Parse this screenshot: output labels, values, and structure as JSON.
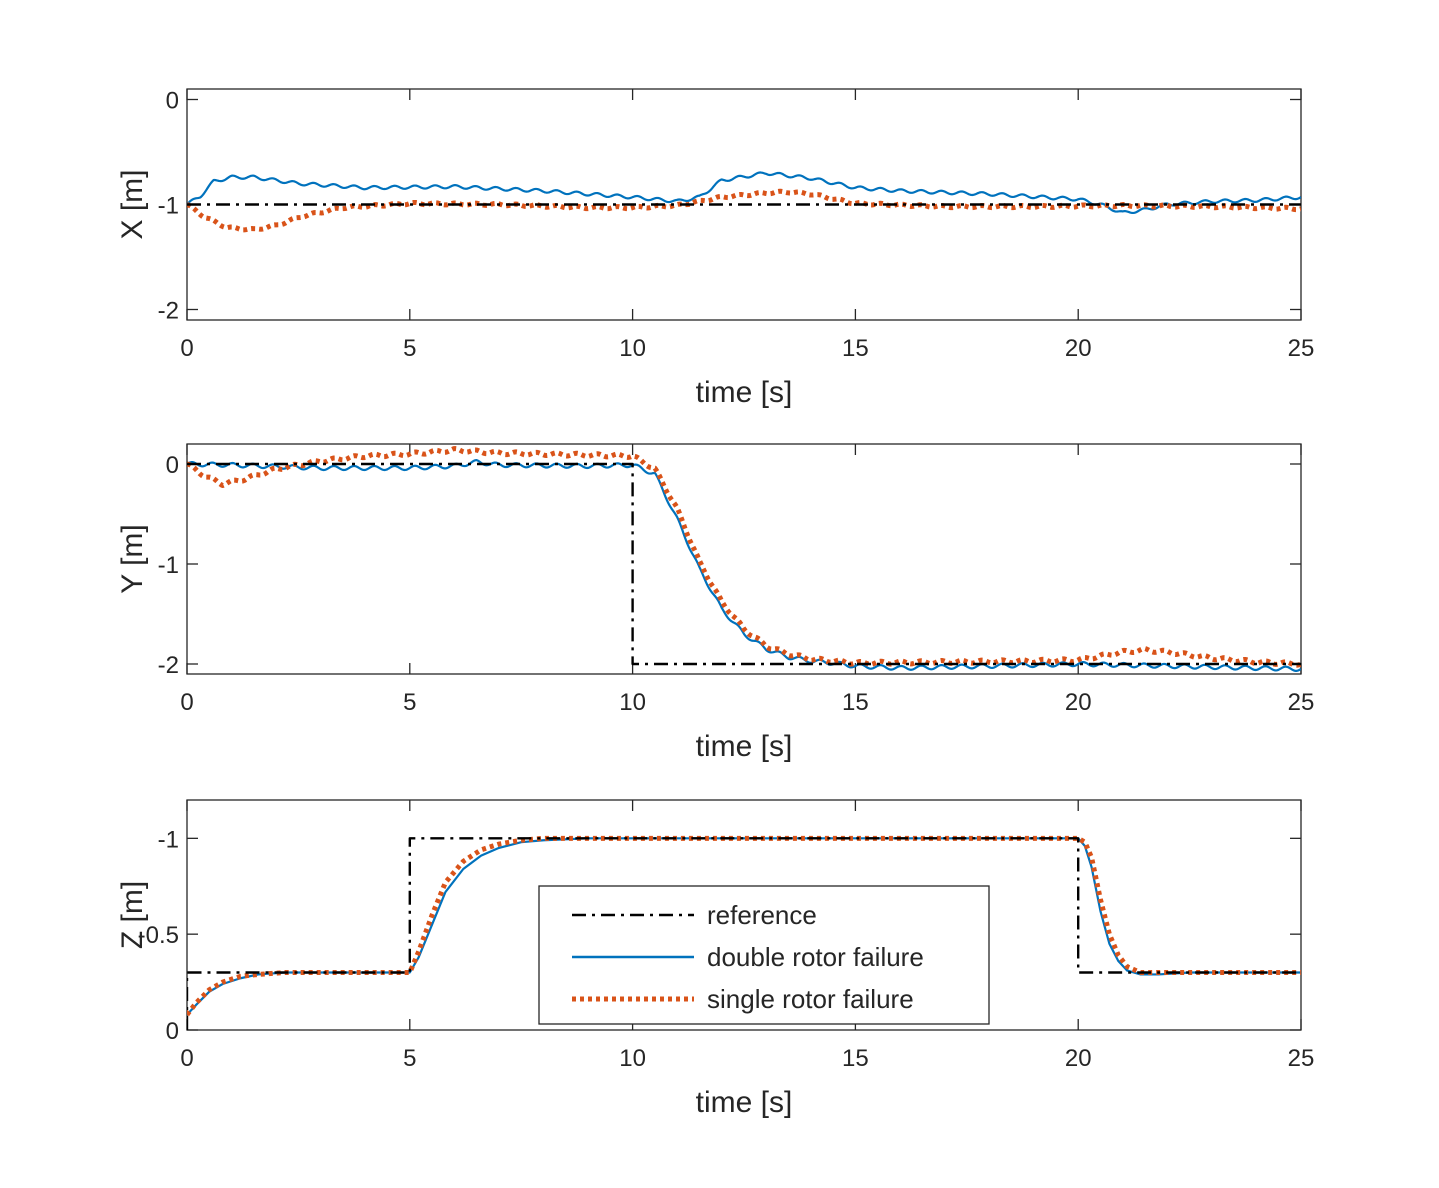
{
  "figure": {
    "series_styles": {
      "reference": {
        "color": "#000000",
        "dash": "dashdot"
      },
      "double": {
        "color": "#0072BD",
        "dash": "solid"
      },
      "single": {
        "color": "#D95319",
        "dash": "dotted"
      }
    },
    "legend": {
      "placement": "inside-bottom-center",
      "entries": [
        "reference",
        "double rotor failure",
        "single rotor failure"
      ]
    }
  },
  "chart_data": [
    {
      "type": "line",
      "ylabel": "X [m]",
      "xlabel": "time [s]",
      "xlim": [
        0,
        25
      ],
      "ylim": [
        -2.1,
        0.1
      ],
      "y_reversed": false,
      "xticks": [
        0,
        5,
        10,
        15,
        20,
        25
      ],
      "xtick_labels": [
        "0",
        "5",
        "10",
        "15",
        "20",
        "25"
      ],
      "yticks": [
        -2,
        -1,
        0
      ],
      "ytick_labels": [
        "-2",
        "-1",
        "0"
      ],
      "series": [
        {
          "name": "reference",
          "x": [
            0,
            25
          ],
          "y": [
            -1,
            -1
          ]
        },
        {
          "name": "double rotor failure",
          "ripple": 0.015,
          "x": [
            0,
            0.3,
            0.6,
            1.0,
            1.5,
            2.5,
            4,
            6,
            8,
            10,
            11,
            11.5,
            12,
            13,
            14,
            15,
            16,
            18,
            20,
            20.5,
            21,
            21.5,
            22,
            23,
            24,
            25
          ],
          "y": [
            -1.0,
            -0.92,
            -0.78,
            -0.74,
            -0.74,
            -0.8,
            -0.84,
            -0.83,
            -0.87,
            -0.93,
            -0.97,
            -0.93,
            -0.77,
            -0.7,
            -0.75,
            -0.84,
            -0.87,
            -0.9,
            -0.95,
            -1.0,
            -1.08,
            -1.05,
            -1.0,
            -0.97,
            -0.96,
            -0.93
          ]
        },
        {
          "name": "single rotor failure",
          "ripple": 0.01,
          "x": [
            0,
            0.4,
            0.9,
            1.5,
            2.0,
            2.6,
            3.5,
            5,
            7,
            9,
            10,
            11,
            12,
            13,
            13.5,
            14,
            15,
            17,
            19,
            21,
            23,
            25
          ],
          "y": [
            -1.0,
            -1.12,
            -1.22,
            -1.24,
            -1.2,
            -1.11,
            -1.03,
            -0.99,
            -1.0,
            -1.03,
            -1.03,
            -1.01,
            -0.93,
            -0.89,
            -0.88,
            -0.9,
            -0.99,
            -1.02,
            -1.02,
            -1.01,
            -1.02,
            -1.04
          ]
        }
      ]
    },
    {
      "type": "line",
      "ylabel": "Y [m]",
      "xlabel": "time [s]",
      "xlim": [
        0,
        25
      ],
      "ylim": [
        -2.1,
        0.2
      ],
      "y_reversed": false,
      "xticks": [
        0,
        5,
        10,
        15,
        20,
        25
      ],
      "xtick_labels": [
        "0",
        "5",
        "10",
        "15",
        "20",
        "25"
      ],
      "yticks": [
        -2,
        -1,
        0
      ],
      "ytick_labels": [
        "-2",
        "-1",
        "0"
      ],
      "series": [
        {
          "name": "reference",
          "x": [
            0,
            10,
            10,
            25
          ],
          "y": [
            0,
            0,
            -2,
            -2
          ]
        },
        {
          "name": "double rotor failure",
          "ripple": 0.02,
          "x": [
            0,
            1,
            3,
            5,
            6,
            6.5,
            7,
            9,
            10,
            10.5,
            11,
            11.5,
            12,
            12.5,
            13,
            13.5,
            14,
            14.5,
            15,
            16,
            18,
            20,
            21,
            23,
            25
          ],
          "y": [
            0.0,
            -0.01,
            -0.04,
            -0.04,
            -0.02,
            0.02,
            -0.01,
            -0.02,
            -0.01,
            -0.1,
            -0.55,
            -1.05,
            -1.45,
            -1.7,
            -1.85,
            -1.93,
            -1.97,
            -1.99,
            -2.02,
            -2.04,
            -2.02,
            -2.0,
            -2.01,
            -2.03,
            -2.05
          ]
        },
        {
          "name": "single rotor failure",
          "ripple": 0.015,
          "x": [
            0,
            0.4,
            0.8,
            1.3,
            2,
            3,
            4,
            5,
            6,
            7,
            8,
            9,
            10,
            10.5,
            11,
            11.5,
            12,
            12.5,
            13,
            13.5,
            14,
            15,
            17,
            19,
            20,
            21,
            21.5,
            22,
            23,
            24,
            25
          ],
          "y": [
            0.0,
            -0.12,
            -0.2,
            -0.15,
            -0.05,
            0.03,
            0.08,
            0.1,
            0.14,
            0.11,
            0.1,
            0.09,
            0.08,
            -0.05,
            -0.45,
            -0.98,
            -1.38,
            -1.65,
            -1.82,
            -1.9,
            -1.95,
            -1.99,
            -1.98,
            -1.97,
            -1.96,
            -1.88,
            -1.86,
            -1.88,
            -1.94,
            -1.98,
            -2.0
          ]
        }
      ]
    },
    {
      "type": "line",
      "ylabel": "Z [m]",
      "xlabel": "time [s]",
      "xlim": [
        0,
        25
      ],
      "ylim": [
        0,
        -1.2
      ],
      "y_reversed": true,
      "xticks": [
        0,
        5,
        10,
        15,
        20,
        25
      ],
      "xtick_labels": [
        "0",
        "5",
        "10",
        "15",
        "20",
        "25"
      ],
      "yticks": [
        -1,
        -0.5,
        0
      ],
      "ytick_labels": [
        "-1",
        "-0.5",
        "0"
      ],
      "series": [
        {
          "name": "reference",
          "x": [
            0,
            0,
            5,
            5,
            20,
            20,
            25
          ],
          "y": [
            0,
            -0.3,
            -0.3,
            -1,
            -1,
            -0.3,
            -0.3
          ]
        },
        {
          "name": "double rotor failure",
          "ripple": 0,
          "x": [
            0,
            0.2,
            0.5,
            0.8,
            1.2,
            1.6,
            2.2,
            3,
            5,
            5.2,
            5.5,
            5.8,
            6.2,
            6.6,
            7,
            7.5,
            8,
            9,
            10,
            12,
            15,
            18,
            20,
            20.15,
            20.3,
            20.5,
            20.7,
            20.9,
            21.1,
            21.4,
            21.8,
            22.5,
            25
          ],
          "y": [
            -0.08,
            -0.13,
            -0.2,
            -0.24,
            -0.27,
            -0.29,
            -0.3,
            -0.3,
            -0.3,
            -0.38,
            -0.55,
            -0.72,
            -0.84,
            -0.91,
            -0.95,
            -0.98,
            -0.99,
            -1.0,
            -1.0,
            -1.0,
            -1.0,
            -1.0,
            -1.0,
            -0.96,
            -0.85,
            -0.62,
            -0.45,
            -0.36,
            -0.31,
            -0.29,
            -0.29,
            -0.3,
            -0.3
          ]
        },
        {
          "name": "single rotor failure",
          "ripple": 0,
          "x": [
            0,
            0.2,
            0.5,
            0.8,
            1.2,
            1.6,
            2.2,
            3,
            5,
            5.2,
            5.5,
            5.8,
            6.2,
            6.6,
            7,
            7.5,
            8,
            9,
            10,
            12,
            15,
            18,
            20,
            20.15,
            20.3,
            20.5,
            20.7,
            20.9,
            21.1,
            21.4,
            21.8,
            22.5,
            25
          ],
          "y": [
            -0.08,
            -0.14,
            -0.21,
            -0.25,
            -0.28,
            -0.29,
            -0.3,
            -0.3,
            -0.3,
            -0.41,
            -0.6,
            -0.77,
            -0.88,
            -0.94,
            -0.97,
            -0.99,
            -1.0,
            -1.0,
            -1.0,
            -1.0,
            -1.0,
            -1.0,
            -1.0,
            -0.98,
            -0.9,
            -0.68,
            -0.5,
            -0.39,
            -0.33,
            -0.3,
            -0.3,
            -0.3,
            -0.3
          ]
        }
      ]
    }
  ]
}
